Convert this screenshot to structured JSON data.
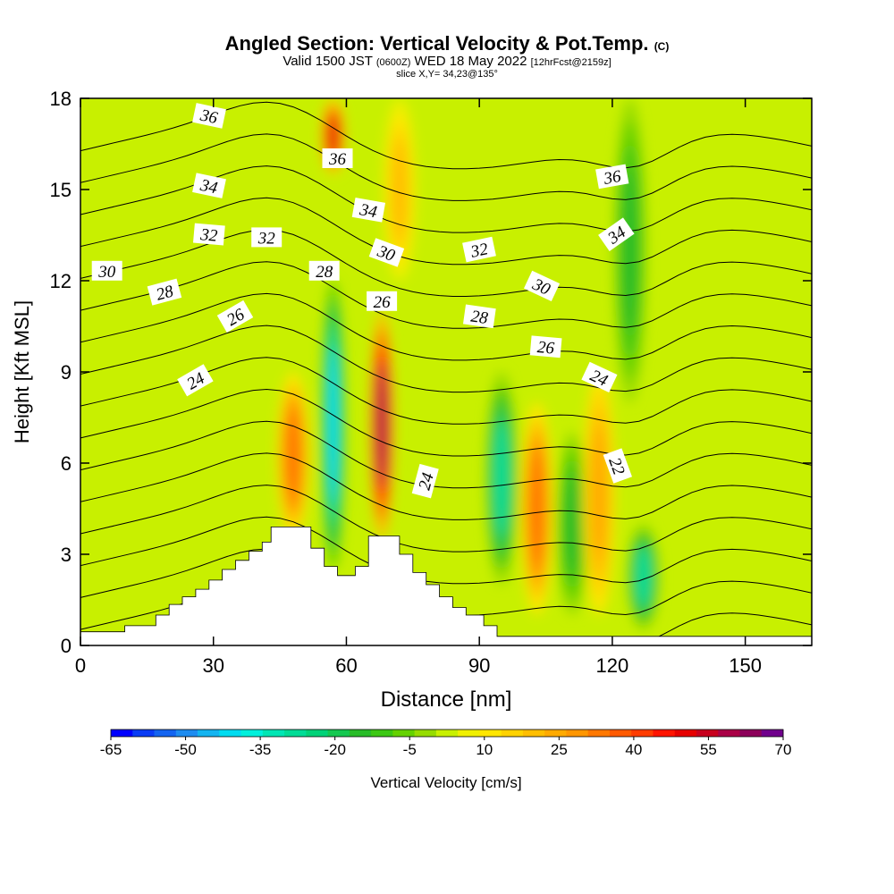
{
  "header": {
    "title_main": "Angled Section: Vertical Velocity & Pot.Temp.",
    "title_unit": "(C)",
    "valid_prefix": "Valid 1500 JST",
    "valid_utc": "(0600Z)",
    "valid_date": "WED 18 May 2022",
    "fcst_note": "[12hrFcst@2159z]",
    "slice": "slice X,Y= 34,23@135°"
  },
  "chart_data": {
    "type": "heatmap",
    "xlabel": "Distance [nm]",
    "ylabel": "Height [Kft MSL]",
    "xlim": [
      0,
      165
    ],
    "ylim": [
      0,
      18
    ],
    "x_ticks": [
      "0",
      "30",
      "60",
      "90",
      "120",
      "150"
    ],
    "y_ticks": [
      "0",
      "3",
      "6",
      "9",
      "12",
      "15",
      "18"
    ],
    "colorbar": {
      "label": "Vertical Velocity [cm/s]",
      "tick_labels": [
        "-65",
        "-50",
        "-35",
        "-20",
        "-5",
        "10",
        "25",
        "40",
        "55",
        "70"
      ],
      "range": [
        -65,
        70
      ],
      "colors": [
        "#0000ff",
        "#0a3cf5",
        "#1464f0",
        "#1e8cf0",
        "#14b4f0",
        "#00dcf0",
        "#00f0dc",
        "#00e6b4",
        "#00dc96",
        "#00d278",
        "#14c850",
        "#28bc28",
        "#3cc814",
        "#64d200",
        "#96dc00",
        "#c8f000",
        "#f0f000",
        "#ffe600",
        "#ffd200",
        "#ffbe00",
        "#ffaa00",
        "#ff9600",
        "#ff7800",
        "#ff5a00",
        "#ff3c00",
        "#ff1400",
        "#e60000",
        "#c8001e",
        "#aa0046",
        "#8c005a",
        "#70008c"
      ]
    },
    "velocity_features": [
      {
        "x": 57,
        "zmin": 2.5,
        "zmax": 12,
        "value": -40,
        "note": "strong downdraft column"
      },
      {
        "x": 68,
        "zmin": 3.5,
        "zmax": 11,
        "value": 60,
        "note": "strong updraft column"
      },
      {
        "x": 48,
        "zmin": 3.5,
        "zmax": 9,
        "value": 35,
        "note": "updraft"
      },
      {
        "x": 57,
        "zmin": 15.5,
        "zmax": 18,
        "value": 50,
        "note": "upper updraft"
      },
      {
        "x": 95,
        "zmin": 2,
        "zmax": 9,
        "value": -30,
        "note": "downdraft"
      },
      {
        "x": 103,
        "zmin": 1,
        "zmax": 8,
        "value": 35,
        "note": "updraft"
      },
      {
        "x": 111,
        "zmin": 1,
        "zmax": 7,
        "value": -15,
        "note": "weak downdraft"
      },
      {
        "x": 117,
        "zmin": 1,
        "zmax": 9,
        "value": 25,
        "note": "updraft"
      },
      {
        "x": 127,
        "zmin": 0.5,
        "zmax": 4,
        "value": -30,
        "note": "low downdraft"
      },
      {
        "x": 124,
        "zmin": 8,
        "zmax": 18,
        "value": -15,
        "note": "upper downdraft band"
      },
      {
        "x": 72,
        "zmin": 12,
        "zmax": 18,
        "value": 20,
        "note": "upper updraft"
      }
    ],
    "isentrope_levels": [
      22,
      23,
      24,
      25,
      26,
      27,
      28,
      29,
      30,
      31,
      32,
      33,
      34,
      35,
      36,
      37
    ],
    "contour_labels": [
      {
        "text": "36",
        "x": 29,
        "y": 17.4,
        "angle": 12
      },
      {
        "text": "36",
        "x": 58,
        "y": 16.0,
        "angle": 0
      },
      {
        "text": "36",
        "x": 120,
        "y": 15.4,
        "angle": -10
      },
      {
        "text": "34",
        "x": 29,
        "y": 15.1,
        "angle": 12
      },
      {
        "text": "34",
        "x": 65,
        "y": 14.3,
        "angle": 10
      },
      {
        "text": "34",
        "x": 121,
        "y": 13.5,
        "angle": -35
      },
      {
        "text": "32",
        "x": 29,
        "y": 13.5,
        "angle": 5
      },
      {
        "text": "32",
        "x": 42,
        "y": 13.4,
        "angle": 0
      },
      {
        "text": "32",
        "x": 90,
        "y": 13.0,
        "angle": -12
      },
      {
        "text": "30",
        "x": 6,
        "y": 12.3,
        "angle": 0
      },
      {
        "text": "30",
        "x": 69,
        "y": 12.9,
        "angle": 20
      },
      {
        "text": "30",
        "x": 104,
        "y": 11.8,
        "angle": 25
      },
      {
        "text": "28",
        "x": 19,
        "y": 11.6,
        "angle": -15
      },
      {
        "text": "28",
        "x": 55,
        "y": 12.3,
        "angle": 0
      },
      {
        "text": "28",
        "x": 90,
        "y": 10.8,
        "angle": 8
      },
      {
        "text": "26",
        "x": 35,
        "y": 10.8,
        "angle": -30
      },
      {
        "text": "26",
        "x": 68,
        "y": 11.3,
        "angle": 0
      },
      {
        "text": "26",
        "x": 105,
        "y": 9.8,
        "angle": 5
      },
      {
        "text": "24",
        "x": 26,
        "y": 8.7,
        "angle": -30
      },
      {
        "text": "24",
        "x": 78,
        "y": 5.4,
        "angle": -75
      },
      {
        "text": "24",
        "x": 117,
        "y": 8.8,
        "angle": 25
      },
      {
        "text": "22",
        "x": 121,
        "y": 5.9,
        "angle": 70
      }
    ],
    "terrain_kft": [
      [
        0,
        0.45
      ],
      [
        10,
        0.45
      ],
      [
        10,
        0.65
      ],
      [
        17,
        0.65
      ],
      [
        17,
        1.0
      ],
      [
        20,
        1.0
      ],
      [
        20,
        1.35
      ],
      [
        23,
        1.35
      ],
      [
        23,
        1.6
      ],
      [
        26,
        1.6
      ],
      [
        26,
        1.85
      ],
      [
        29,
        1.85
      ],
      [
        29,
        2.15
      ],
      [
        32,
        2.15
      ],
      [
        32,
        2.5
      ],
      [
        35,
        2.5
      ],
      [
        35,
        2.8
      ],
      [
        38,
        2.8
      ],
      [
        38,
        3.1
      ],
      [
        41,
        3.1
      ],
      [
        41,
        3.4
      ],
      [
        43,
        3.4
      ],
      [
        43,
        3.9
      ],
      [
        52,
        3.9
      ],
      [
        52,
        3.2
      ],
      [
        55,
        3.2
      ],
      [
        55,
        2.6
      ],
      [
        58,
        2.6
      ],
      [
        58,
        2.3
      ],
      [
        62,
        2.3
      ],
      [
        62,
        2.6
      ],
      [
        65,
        2.6
      ],
      [
        65,
        3.6
      ],
      [
        72,
        3.6
      ],
      [
        72,
        3.0
      ],
      [
        75,
        3.0
      ],
      [
        75,
        2.4
      ],
      [
        78,
        2.4
      ],
      [
        78,
        2.0
      ],
      [
        81,
        2.0
      ],
      [
        81,
        1.6
      ],
      [
        84,
        1.6
      ],
      [
        84,
        1.25
      ],
      [
        87,
        1.25
      ],
      [
        87,
        1.0
      ],
      [
        91,
        1.0
      ],
      [
        91,
        0.65
      ],
      [
        94,
        0.65
      ],
      [
        94,
        0.3
      ],
      [
        165,
        0.3
      ]
    ]
  }
}
